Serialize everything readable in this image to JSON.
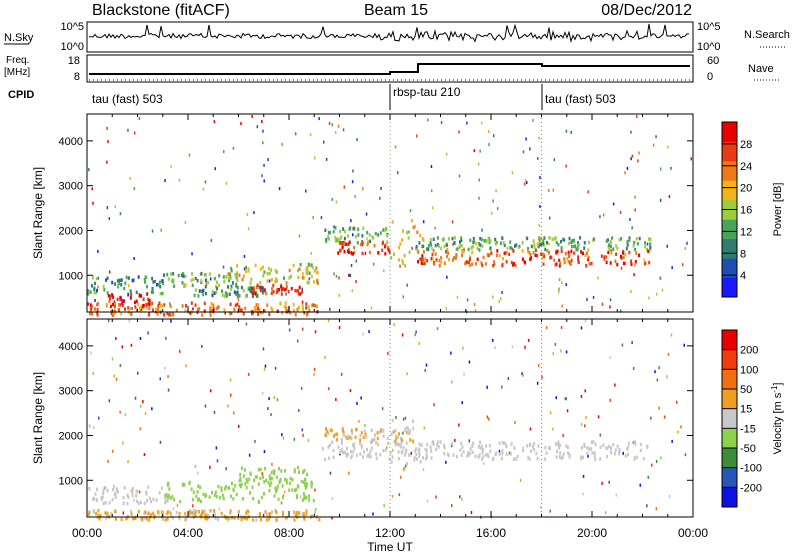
{
  "header": {
    "title": "Blackstone (fitACF)",
    "beam": "Beam 15",
    "date": "08/Dec/2012"
  },
  "noise_panel": {
    "left_label": "N.Sky",
    "right_label": "N.Search",
    "tick_top": "10^5",
    "tick_bottom": "10^0"
  },
  "freq_panel": {
    "left_label_line1": "Freq.",
    "left_label_line2": "[MHz]",
    "left_ticks": [
      "18",
      "8"
    ],
    "right_label": "Nave",
    "right_ticks": [
      "60",
      "0"
    ]
  },
  "cpid_panel": {
    "label": "CPID",
    "segments": [
      {
        "name": "tau (fast) 503",
        "start_hour": 0
      },
      {
        "name": "rbsp-tau 210",
        "start_hour": 12
      },
      {
        "name": "tau (fast) 503",
        "start_hour": 18
      }
    ]
  },
  "colors": {
    "power_scale": [
      "#1a1aff",
      "#1e4fb0",
      "#2e7d6e",
      "#4aa35a",
      "#9ccd3c",
      "#f2b318",
      "#f07818",
      "#e83a14",
      "#e80000"
    ],
    "velocity_scale": [
      "#1010e0",
      "#2a55b8",
      "#3c8c3c",
      "#8cd24a",
      "#c8c8c8",
      "#f0a020",
      "#f07010",
      "#f03a10",
      "#e80000"
    ]
  },
  "chart_data": [
    {
      "type": "heatmap",
      "title": "Power",
      "ylabel": "Slant Range [km]",
      "xlabel": "Time UT",
      "x_ticks": [
        "00:00",
        "04:00",
        "08:00",
        "12:00",
        "16:00",
        "20:00",
        "00:00"
      ],
      "y_ticks": [
        "1000",
        "2000",
        "3000",
        "4000"
      ],
      "xlim_hours": [
        0,
        24
      ],
      "ylim_km": [
        180,
        4600
      ],
      "colorbar": {
        "label": "Power [dB]",
        "tick_labels": [
          "4",
          "8",
          "12",
          "16",
          "20",
          "24",
          "28"
        ],
        "range": [
          0,
          30
        ]
      },
      "bands": [
        {
          "t0": 0.0,
          "t1": 9.2,
          "r0": 150,
          "r1": 420,
          "value": 22
        },
        {
          "t0": 0.0,
          "t1": 3.0,
          "r0": 600,
          "r1": 1000,
          "value": 10
        },
        {
          "t0": 0.8,
          "t1": 2.5,
          "r0": 340,
          "r1": 640,
          "value": 27
        },
        {
          "t0": 3.0,
          "t1": 6.0,
          "r0": 760,
          "r1": 1080,
          "value": 12
        },
        {
          "t0": 4.0,
          "t1": 7.0,
          "r0": 560,
          "r1": 780,
          "value": 10
        },
        {
          "t0": 5.5,
          "t1": 9.2,
          "r0": 860,
          "r1": 1280,
          "value": 16
        },
        {
          "t0": 6.5,
          "t1": 8.5,
          "r0": 620,
          "r1": 820,
          "value": 26
        },
        {
          "t0": 9.3,
          "t1": 12.0,
          "r0": 1760,
          "r1": 2100,
          "value": 12
        },
        {
          "t0": 9.7,
          "t1": 12.0,
          "r0": 1500,
          "r1": 1780,
          "value": 26
        },
        {
          "t0": 12.0,
          "t1": 13.2,
          "r0": 1200,
          "r1": 2300,
          "value": 18
        },
        {
          "t0": 13.0,
          "t1": 22.3,
          "r0": 1600,
          "r1": 1880,
          "value": 12
        },
        {
          "t0": 13.0,
          "t1": 22.3,
          "r0": 1250,
          "r1": 1600,
          "value": 24
        }
      ]
    },
    {
      "type": "heatmap",
      "title": "Velocity",
      "ylabel": "Slant Range [km]",
      "xlabel": "Time UT",
      "x_ticks": [
        "00:00",
        "04:00",
        "08:00",
        "12:00",
        "16:00",
        "20:00",
        "00:00"
      ],
      "y_ticks": [
        "1000",
        "2000",
        "3000",
        "4000"
      ],
      "xlim_hours": [
        0,
        24
      ],
      "ylim_km": [
        180,
        4600
      ],
      "colorbar": {
        "label": "Velocity [m s^-1]",
        "tick_labels": [
          "200",
          "100",
          "50",
          "15",
          "-15",
          "-50",
          "-100",
          "-200"
        ],
        "range": [
          -250,
          250
        ]
      },
      "bands": [
        {
          "t0": 0.0,
          "t1": 9.2,
          "r0": 150,
          "r1": 360,
          "value": 40
        },
        {
          "t0": 0.0,
          "t1": 3.2,
          "r0": 520,
          "r1": 900,
          "value": 0
        },
        {
          "t0": 3.0,
          "t1": 9.0,
          "r0": 560,
          "r1": 1000,
          "value": -60
        },
        {
          "t0": 6.0,
          "t1": 8.7,
          "r0": 1000,
          "r1": 1320,
          "value": -60
        },
        {
          "t0": 9.3,
          "t1": 22.3,
          "r0": 1500,
          "r1": 1900,
          "value": 0
        },
        {
          "t0": 9.3,
          "t1": 13.0,
          "r0": 1900,
          "r1": 2200,
          "value": 30
        },
        {
          "t0": 12.0,
          "t1": 13.2,
          "r0": 1200,
          "r1": 2400,
          "value": 10
        }
      ]
    }
  ]
}
